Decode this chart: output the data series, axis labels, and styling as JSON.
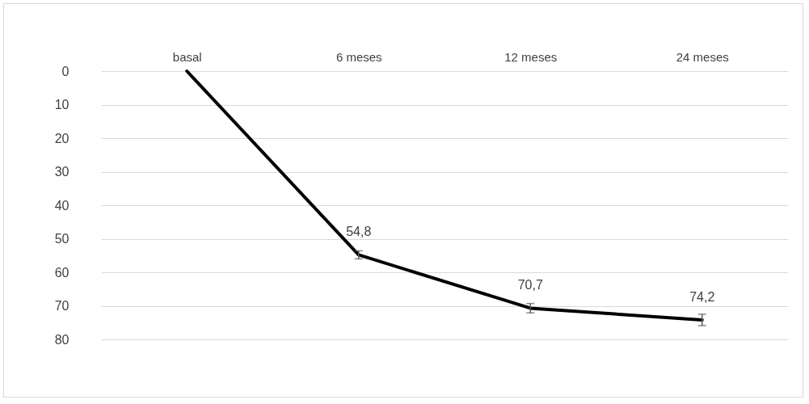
{
  "chart_data": {
    "type": "line",
    "categories": [
      "basal",
      "6 meses",
      "12 meses",
      "24 meses"
    ],
    "series": [
      {
        "color": "#000000",
        "values": [
          0,
          54.8,
          70.7,
          74.2
        ],
        "errors": [
          null,
          1.2,
          1.4,
          1.7
        ],
        "value_labels": [
          null,
          "54,8",
          "70,7",
          "74,2"
        ]
      }
    ],
    "ylim": [
      80,
      0
    ],
    "yticks": [
      0,
      10,
      20,
      30,
      40,
      50,
      60,
      70,
      80
    ],
    "grid": "y",
    "marker": "none",
    "line_style": "solid"
  }
}
